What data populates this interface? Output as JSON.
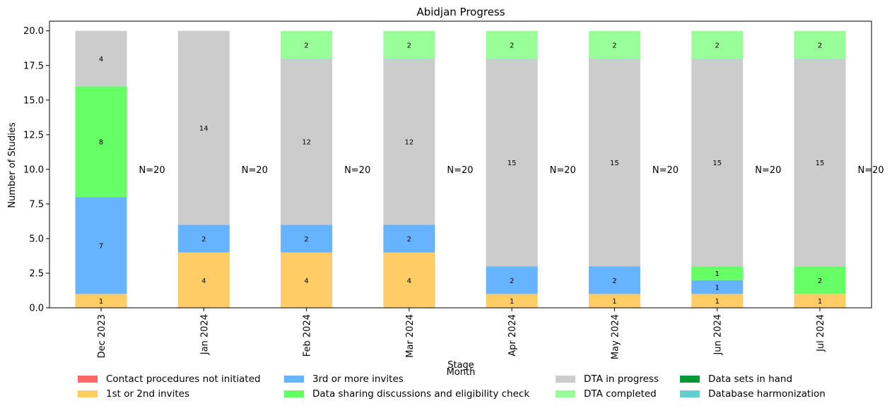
{
  "chart_data": {
    "type": "bar",
    "stacked": true,
    "title": "Abidjan Progress",
    "xlabel": "Month",
    "ylabel": "Number of Studies",
    "ylim": [
      0,
      20.7
    ],
    "yticks": [
      "0.0",
      "2.5",
      "5.0",
      "7.5",
      "10.0",
      "12.5",
      "15.0",
      "17.5",
      "20.0"
    ],
    "categories": [
      "Dec 2023",
      "Jan 2024",
      "Feb 2024",
      "Mar 2024",
      "Apr 2024",
      "May 2024",
      "Jun 2024",
      "Jul 2024"
    ],
    "totals_labels": [
      "N=20",
      "N=20",
      "N=20",
      "N=20",
      "N=20",
      "N=20",
      "N=20",
      "N=20"
    ],
    "legend_title": "Stage",
    "legend_position": "bottom",
    "series": [
      {
        "name": "Contact procedures not initiated",
        "color": "#ff6666",
        "values": [
          0,
          0,
          0,
          0,
          0,
          0,
          0,
          0
        ]
      },
      {
        "name": "1st or 2nd invites",
        "color": "#ffcc66",
        "values": [
          1,
          4,
          4,
          4,
          1,
          1,
          1,
          1
        ]
      },
      {
        "name": "3rd or more invites",
        "color": "#66b3ff",
        "values": [
          7,
          2,
          2,
          2,
          2,
          2,
          1,
          0
        ]
      },
      {
        "name": "Data sharing discussions and eligibility check",
        "color": "#66ff66",
        "values": [
          8,
          0,
          0,
          0,
          0,
          0,
          1,
          2
        ]
      },
      {
        "name": "DTA in progress",
        "color": "#cccccc",
        "values": [
          4,
          14,
          12,
          12,
          15,
          15,
          15,
          15
        ]
      },
      {
        "name": "DTA completed",
        "color": "#99ff99",
        "values": [
          0,
          0,
          2,
          2,
          2,
          2,
          2,
          2
        ]
      },
      {
        "name": "Data sets in hand",
        "color": "#009933",
        "values": [
          0,
          0,
          0,
          0,
          0,
          0,
          0,
          0
        ]
      },
      {
        "name": "Database harmonization",
        "color": "#66cccc",
        "values": [
          0,
          0,
          0,
          0,
          0,
          0,
          0,
          0
        ]
      }
    ]
  }
}
